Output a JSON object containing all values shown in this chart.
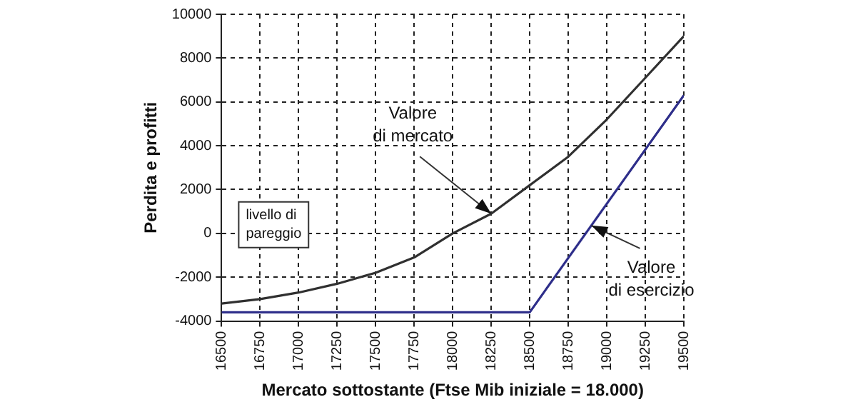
{
  "chart_data": {
    "type": "line",
    "xlabel": "Mercato sottostante (Ftse Mib iniziale = 18.000)",
    "ylabel": "Perdita e profitti",
    "x": [
      16500,
      16750,
      17000,
      17250,
      17500,
      17750,
      18000,
      18250,
      18500,
      18750,
      19000,
      19250,
      19500
    ],
    "series": [
      {
        "color": "#303030",
        "values": [
          -3200,
          -3000,
          -2700,
          -2300,
          -1800,
          -1100,
          0,
          900,
          2200,
          3500,
          5200,
          7100,
          9000
        ]
      },
      {
        "color": "#2e2e8a",
        "x": [
          16500,
          18500,
          19500
        ],
        "values": [
          -3600,
          -3600,
          6300
        ]
      }
    ],
    "xlim": [
      16500,
      19500
    ],
    "xticks": [
      16500,
      16750,
      17000,
      17250,
      17500,
      17750,
      18000,
      18250,
      18500,
      18750,
      19000,
      19250,
      19500
    ],
    "ylim": [
      -4000,
      10000
    ],
    "yticks": [
      -4000,
      -2000,
      0,
      2000,
      4000,
      6000,
      8000,
      10000
    ],
    "grid": true,
    "legend": false,
    "marker": "none",
    "line_style": "solid",
    "annotations": [
      {
        "text": "Valore\ndi mercato",
        "x": 18250,
        "y": 900
      },
      {
        "text": "Valore\ndi esercizio",
        "x": 18900,
        "y": 360
      },
      "livello di\npareggio"
    ]
  }
}
